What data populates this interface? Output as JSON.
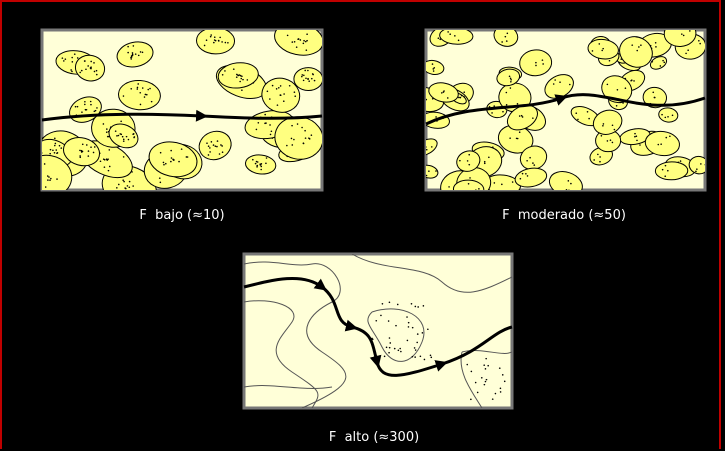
{
  "panels": [
    {
      "label": "F  bajo (≈10)"
    },
    {
      "label": "F  moderado (≈50)"
    },
    {
      "label": "F  alto (≈300)"
    }
  ]
}
